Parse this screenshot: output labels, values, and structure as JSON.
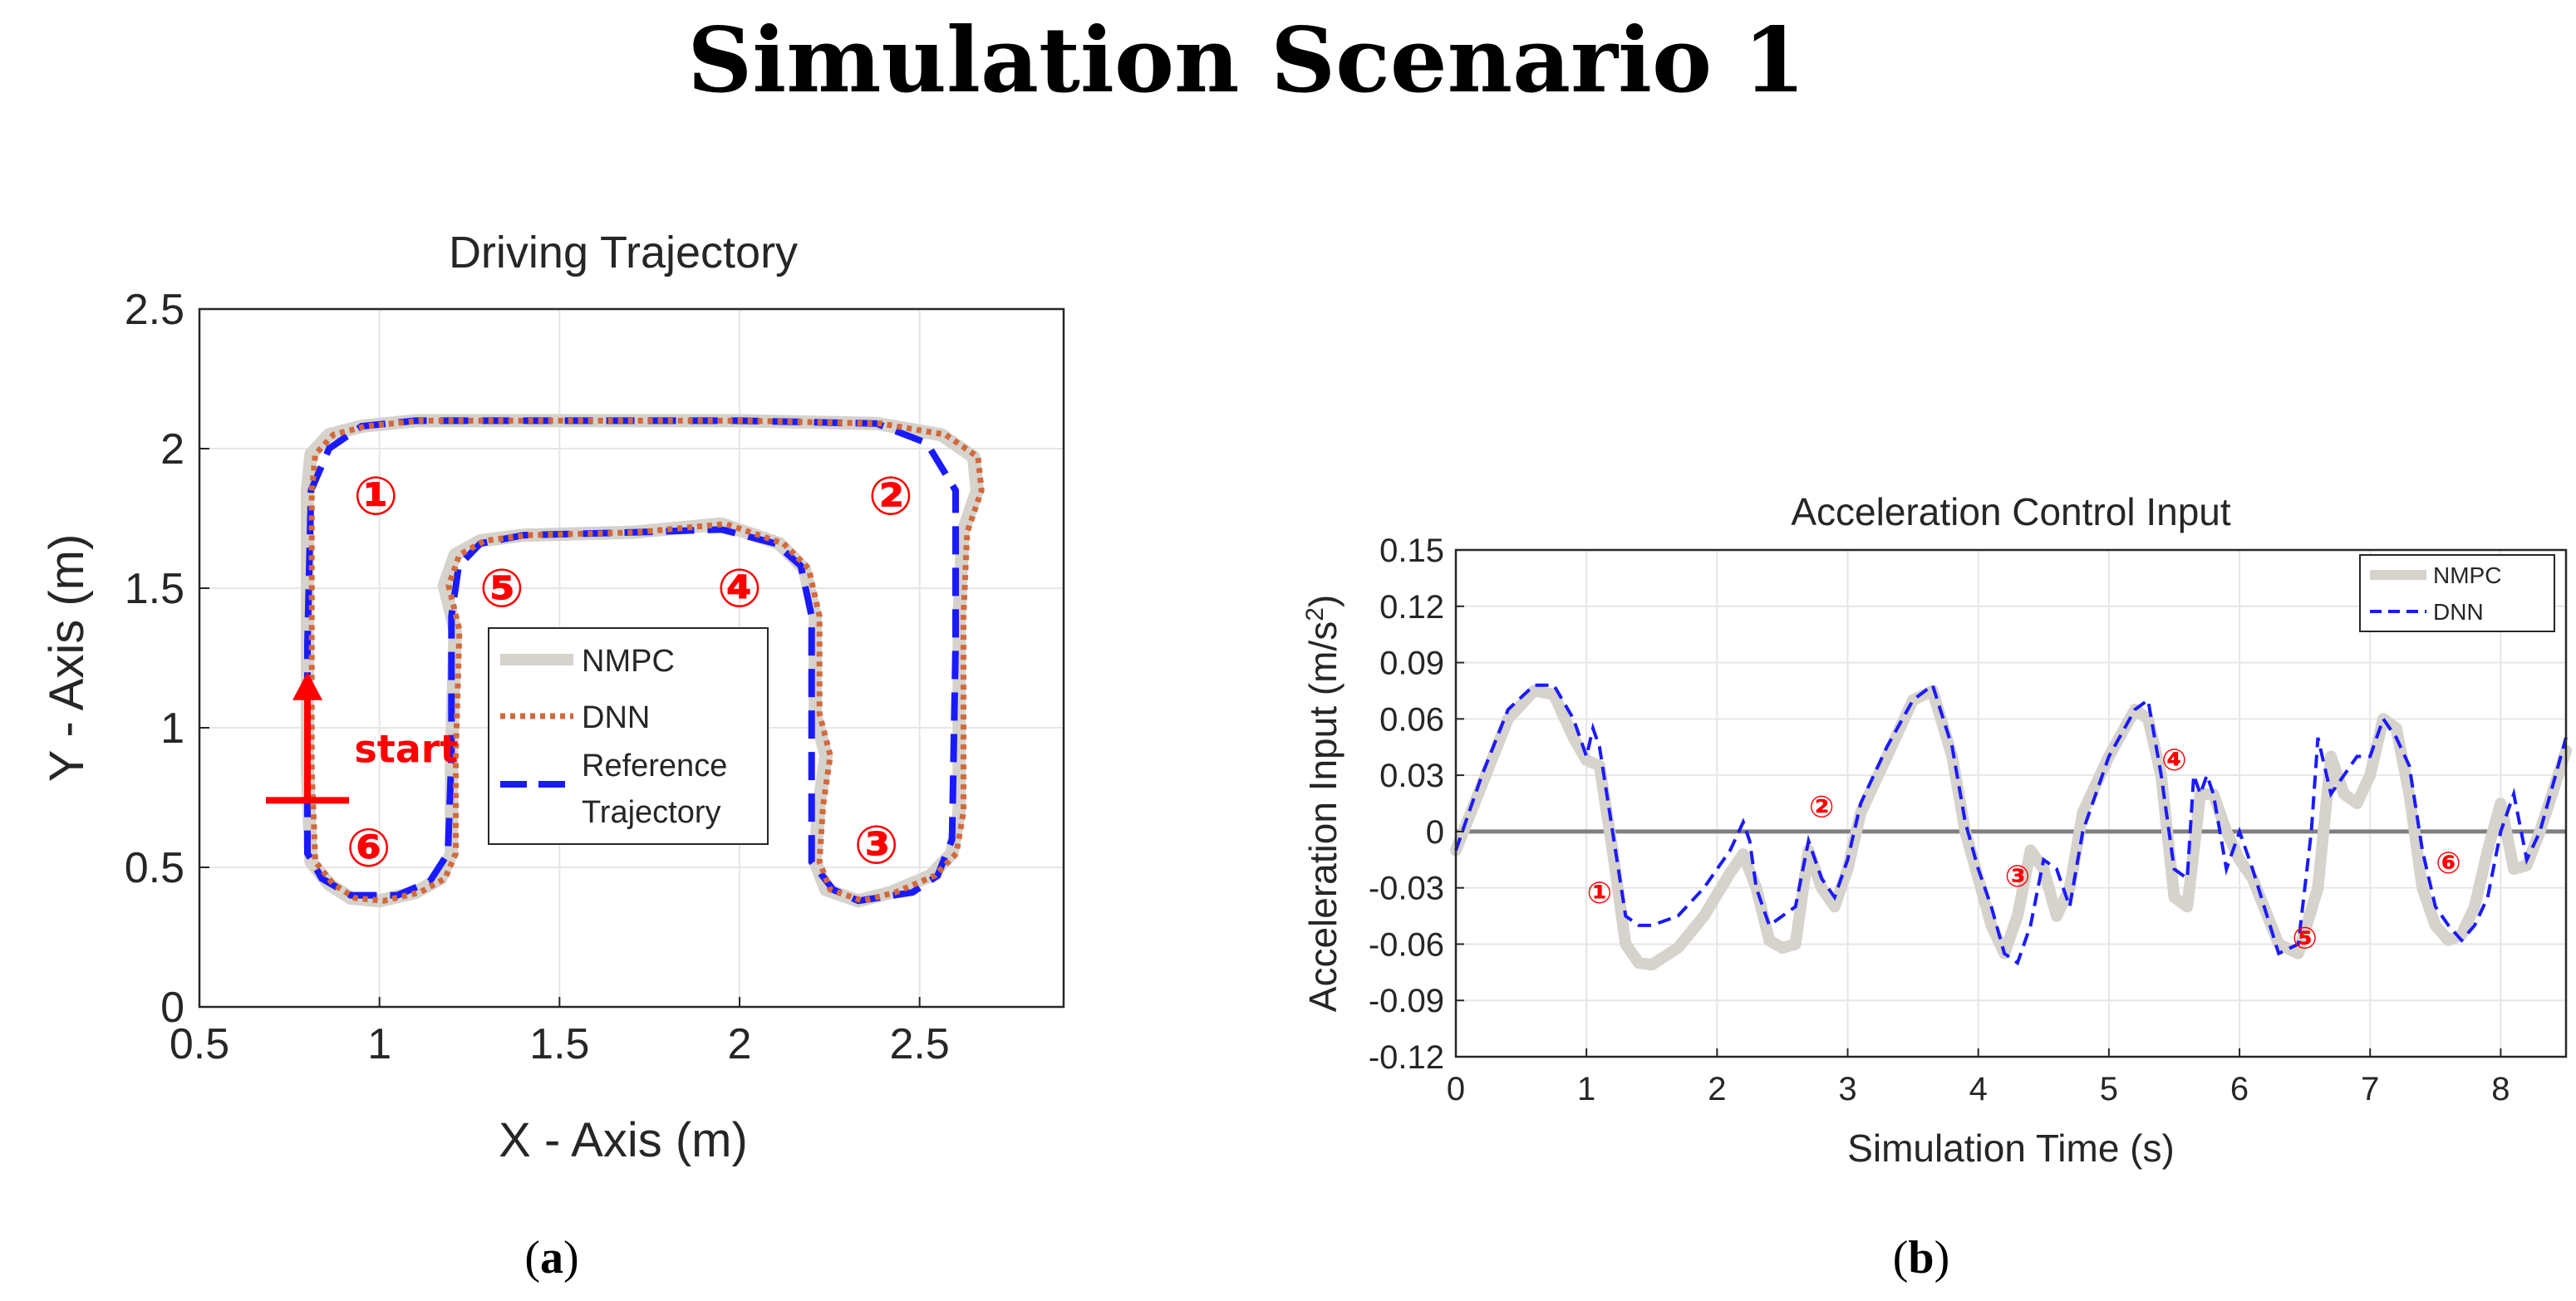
{
  "figure": {
    "heading": "Simulation Scenario 1",
    "caption_a_open": "(",
    "caption_a_letter": "a",
    "caption_a_close": ")",
    "caption_b_open": "(",
    "caption_b_letter": "b",
    "caption_b_close": ")"
  },
  "colors": {
    "nmpc": "#d6d2cc",
    "dnn_orange": "#d2693c",
    "reference_blue": "#1a1aff",
    "dnn_blue": "#1a1aff",
    "marker_red": "#ff0000",
    "zero_line": "#7f7f7f"
  },
  "chart_data": [
    {
      "type": "line",
      "title": "Driving Trajectory",
      "xlabel": "X - Axis (m)",
      "ylabel": "Y - Axis (m)",
      "xlim": [
        0.5,
        2.9
      ],
      "ylim": [
        0,
        2.5
      ],
      "xticks": [
        "0.5",
        "1",
        "1.5",
        "2",
        "2.5"
      ],
      "xtick_values": [
        0.5,
        1,
        1.5,
        2,
        2.5
      ],
      "yticks": [
        "0",
        "0.5",
        "1",
        "1.5",
        "2",
        "2.5"
      ],
      "ytick_values": [
        0,
        0.5,
        1,
        1.5,
        2,
        2.5
      ],
      "grid": true,
      "legend_position": "inside-center",
      "legend": [
        "NMPC",
        "DNN",
        "Reference\nTrajectory"
      ],
      "series": [
        {
          "name": "Reference\nTrajectory",
          "style": "dashed",
          "x": [
            0.8,
            0.8,
            0.81,
            0.86,
            0.95,
            1.1,
            1.5,
            2,
            2.38,
            2.52,
            2.6,
            2.6,
            2.59,
            2.55,
            2.48,
            2.33,
            2.26,
            2.2,
            2.2,
            2.2,
            2.17,
            2.1,
            1.95,
            1.7,
            1.4,
            1.28,
            1.22,
            1.2,
            1.2,
            1.19,
            1.14,
            1.05,
            0.92,
            0.84,
            0.8,
            0.8
          ],
          "y": [
            0.8,
            1.3,
            1.85,
            2.0,
            2.08,
            2.1,
            2.1,
            2.1,
            2.09,
            2.02,
            1.85,
            1.3,
            0.6,
            0.47,
            0.41,
            0.38,
            0.42,
            0.52,
            0.8,
            1.4,
            1.58,
            1.66,
            1.71,
            1.7,
            1.69,
            1.66,
            1.58,
            1.4,
            0.9,
            0.55,
            0.45,
            0.4,
            0.4,
            0.46,
            0.55,
            0.8
          ]
        },
        {
          "name": "NMPC",
          "style": "thick",
          "x": [
            0.8,
            0.8,
            0.8,
            0.81,
            0.86,
            0.95,
            1.1,
            1.5,
            2,
            2.38,
            2.56,
            2.65,
            2.66,
            2.62,
            2.61,
            2.61,
            2.59,
            2.53,
            2.42,
            2.33,
            2.24,
            2.21,
            2.22,
            2.24,
            2.21,
            2.21,
            2.18,
            2.11,
            1.95,
            1.7,
            1.4,
            1.28,
            1.21,
            1.18,
            1.21,
            1.2,
            1.2,
            1.17,
            1.1,
            1.0,
            0.92,
            0.86,
            0.81,
            0.8
          ],
          "y": [
            0.85,
            1.3,
            1.85,
            1.98,
            2.05,
            2.08,
            2.1,
            2.1,
            2.1,
            2.09,
            2.05,
            1.97,
            1.85,
            1.7,
            1.4,
            0.7,
            0.55,
            0.47,
            0.41,
            0.38,
            0.42,
            0.52,
            0.72,
            0.9,
            1.05,
            1.4,
            1.57,
            1.66,
            1.73,
            1.7,
            1.69,
            1.67,
            1.62,
            1.51,
            1.35,
            0.9,
            0.55,
            0.46,
            0.41,
            0.38,
            0.39,
            0.44,
            0.52,
            0.85
          ]
        },
        {
          "name": "DNN",
          "style": "dotted",
          "x": [
            0.8,
            0.8,
            0.8,
            0.81,
            0.86,
            0.95,
            1.1,
            1.5,
            2,
            2.38,
            2.56,
            2.65,
            2.66,
            2.62,
            2.61,
            2.61,
            2.59,
            2.53,
            2.42,
            2.33,
            2.24,
            2.21,
            2.22,
            2.24,
            2.21,
            2.21,
            2.18,
            2.11,
            1.95,
            1.7,
            1.4,
            1.28,
            1.21,
            1.18,
            1.21,
            1.2,
            1.2,
            1.17,
            1.1,
            1.0,
            0.92,
            0.86,
            0.81,
            0.8
          ],
          "y": [
            0.85,
            1.3,
            1.85,
            1.98,
            2.05,
            2.08,
            2.1,
            2.1,
            2.1,
            2.09,
            2.05,
            1.97,
            1.85,
            1.7,
            1.4,
            0.7,
            0.55,
            0.47,
            0.41,
            0.38,
            0.42,
            0.52,
            0.72,
            0.9,
            1.05,
            1.4,
            1.57,
            1.66,
            1.73,
            1.7,
            1.69,
            1.67,
            1.62,
            1.51,
            1.35,
            0.9,
            0.55,
            0.46,
            0.41,
            0.38,
            0.39,
            0.44,
            0.52,
            0.85
          ]
        }
      ],
      "annotations": [
        {
          "text": "①",
          "x": 0.99,
          "y": 1.83
        },
        {
          "text": "②",
          "x": 2.42,
          "y": 1.83
        },
        {
          "text": "③",
          "x": 2.38,
          "y": 0.58
        },
        {
          "text": "④",
          "x": 2.0,
          "y": 1.5
        },
        {
          "text": "⑤",
          "x": 1.34,
          "y": 1.5
        },
        {
          "text": "⑥",
          "x": 0.97,
          "y": 0.57
        },
        {
          "text": "start",
          "x": 0.93,
          "y": 0.93
        }
      ],
      "start_marker": {
        "x": 0.8,
        "y": 0.74,
        "arrow_to_y": 1.2
      }
    },
    {
      "type": "line",
      "title": "Acceleration Control Input",
      "xlabel": "Simulation Time (s)",
      "ylabel": "Acceleration Input (m/s²)",
      "ylabel_base": "Acceleration Input (m/s",
      "ylabel_sup": "2",
      "ylabel_end": ")",
      "xlim": [
        0,
        8.5
      ],
      "ylim": [
        -0.12,
        0.15
      ],
      "xticks": [
        "0",
        "1",
        "2",
        "3",
        "4",
        "5",
        "6",
        "7",
        "8"
      ],
      "xtick_values": [
        0,
        1,
        2,
        3,
        4,
        5,
        6,
        7,
        8
      ],
      "yticks": [
        "0.15",
        "0.12",
        "0.09",
        "0.06",
        "0.03",
        "0",
        "-0.03",
        "-0.06",
        "-0.09",
        "-0.12"
      ],
      "ytick_values": [
        0.15,
        0.12,
        0.09,
        0.06,
        0.03,
        0,
        -0.03,
        -0.06,
        -0.09,
        -0.12
      ],
      "grid": true,
      "legend_position": "top-right",
      "legend": [
        "NMPC",
        "DNN"
      ],
      "series": [
        {
          "name": "NMPC",
          "style": "thick",
          "x": [
            0,
            0.2,
            0.4,
            0.6,
            0.75,
            0.9,
            1.0,
            1.1,
            1.2,
            1.3,
            1.4,
            1.5,
            1.7,
            1.9,
            2.1,
            2.2,
            2.3,
            2.4,
            2.5,
            2.6,
            2.7,
            2.8,
            2.9,
            3.0,
            3.1,
            3.3,
            3.5,
            3.65,
            3.8,
            3.9,
            4.0,
            4.1,
            4.2,
            4.3,
            4.4,
            4.5,
            4.6,
            4.7,
            4.8,
            5.0,
            5.2,
            5.3,
            5.4,
            5.5,
            5.6,
            5.7,
            5.8,
            5.9,
            6.0,
            6.1,
            6.3,
            6.45,
            6.6,
            6.7,
            6.8,
            6.9,
            7.0,
            7.1,
            7.2,
            7.3,
            7.4,
            7.5,
            7.6,
            7.7,
            7.8,
            7.9,
            8.0,
            8.1,
            8.2,
            8.3,
            8.5
          ],
          "y": [
            -0.01,
            0.025,
            0.06,
            0.075,
            0.073,
            0.05,
            0.038,
            0.035,
            -0.01,
            -0.06,
            -0.07,
            -0.071,
            -0.062,
            -0.045,
            -0.022,
            -0.012,
            -0.03,
            -0.058,
            -0.062,
            -0.06,
            -0.01,
            -0.03,
            -0.04,
            -0.02,
            0.01,
            0.04,
            0.07,
            0.075,
            0.04,
            0.0,
            -0.025,
            -0.05,
            -0.065,
            -0.045,
            -0.01,
            -0.02,
            -0.045,
            -0.03,
            0.01,
            0.04,
            0.065,
            0.06,
            0.03,
            -0.035,
            -0.04,
            0.02,
            0.02,
            0.0,
            -0.015,
            -0.025,
            -0.06,
            -0.065,
            -0.03,
            0.04,
            0.02,
            0.015,
            0.03,
            0.06,
            0.055,
            0.02,
            -0.03,
            -0.05,
            -0.058,
            -0.055,
            -0.04,
            -0.01,
            0.015,
            -0.02,
            -0.018,
            0.0,
            0.043
          ]
        },
        {
          "name": "DNN",
          "style": "dashed",
          "x": [
            0,
            0.2,
            0.4,
            0.6,
            0.75,
            0.9,
            1.0,
            1.05,
            1.1,
            1.2,
            1.3,
            1.4,
            1.5,
            1.7,
            1.9,
            2.1,
            2.2,
            2.25,
            2.3,
            2.4,
            2.5,
            2.6,
            2.7,
            2.8,
            2.9,
            3.0,
            3.1,
            3.3,
            3.5,
            3.65,
            3.8,
            3.9,
            4.0,
            4.1,
            4.2,
            4.3,
            4.4,
            4.5,
            4.6,
            4.7,
            4.8,
            5.0,
            5.2,
            5.3,
            5.4,
            5.5,
            5.6,
            5.65,
            5.7,
            5.75,
            5.8,
            5.9,
            6.0,
            6.1,
            6.3,
            6.45,
            6.55,
            6.6,
            6.7,
            6.8,
            6.9,
            7.0,
            7.1,
            7.2,
            7.3,
            7.4,
            7.5,
            7.6,
            7.7,
            7.8,
            7.9,
            8.0,
            8.1,
            8.2,
            8.3,
            8.5
          ],
          "y": [
            -0.01,
            0.03,
            0.065,
            0.078,
            0.078,
            0.06,
            0.04,
            0.055,
            0.045,
            0.0,
            -0.045,
            -0.05,
            -0.05,
            -0.045,
            -0.03,
            -0.01,
            0.005,
            -0.005,
            -0.03,
            -0.05,
            -0.045,
            -0.04,
            -0.005,
            -0.025,
            -0.035,
            -0.015,
            0.015,
            0.045,
            0.07,
            0.078,
            0.045,
            0.005,
            -0.02,
            -0.04,
            -0.065,
            -0.07,
            -0.05,
            -0.015,
            -0.02,
            -0.04,
            0.0,
            0.04,
            0.065,
            0.07,
            0.03,
            -0.02,
            -0.025,
            0.03,
            0.02,
            0.03,
            0.02,
            -0.02,
            0.0,
            -0.02,
            -0.065,
            -0.06,
            0.0,
            0.05,
            0.02,
            0.03,
            0.04,
            0.04,
            0.06,
            0.05,
            0.035,
            -0.01,
            -0.04,
            -0.05,
            -0.058,
            -0.05,
            -0.035,
            0.0,
            0.02,
            -0.015,
            0.0,
            0.05
          ]
        }
      ],
      "annotations": [
        {
          "text": "①",
          "x": 1.1,
          "y": -0.032
        },
        {
          "text": "②",
          "x": 2.8,
          "y": 0.014
        },
        {
          "text": "③",
          "x": 4.3,
          "y": -0.023
        },
        {
          "text": "④",
          "x": 5.5,
          "y": 0.039
        },
        {
          "text": "⑤",
          "x": 6.5,
          "y": -0.056
        },
        {
          "text": "⑥",
          "x": 7.6,
          "y": -0.016
        }
      ]
    }
  ]
}
